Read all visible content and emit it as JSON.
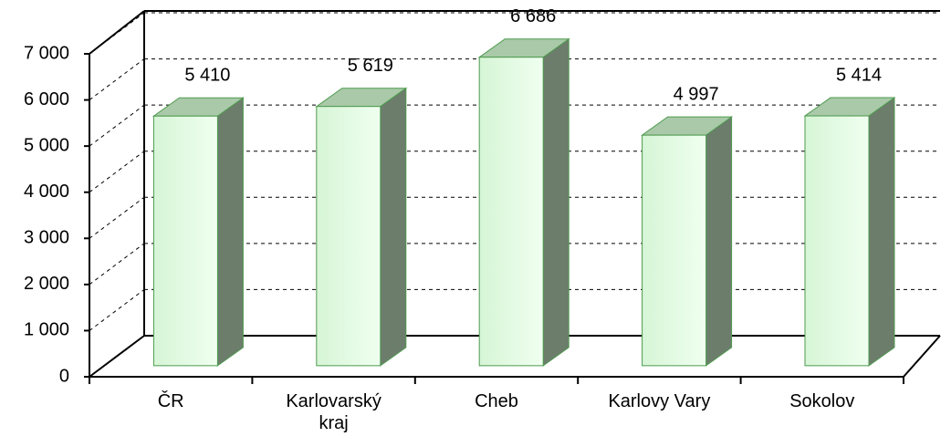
{
  "chart_data": {
    "type": "bar3d",
    "categories": [
      "ČR",
      "Karlovarský kraj",
      "Cheb",
      "Karlovy Vary",
      "Sokolov"
    ],
    "values": [
      5410,
      5619,
      6686,
      4997,
      5414
    ],
    "value_labels": [
      "5 410",
      "5 619",
      "6 686",
      "4 997",
      "5 414"
    ],
    "color": "#e4fbe4",
    "ylim": [
      0,
      7000
    ],
    "yticks": [
      0,
      {
        "value": 1000,
        "label": "1 000"
      },
      {
        "value": 2000,
        "label": "2 000"
      },
      {
        "value": 3000,
        "label": "3 000"
      },
      {
        "value": 4000,
        "label": "4 000"
      },
      {
        "value": 5000,
        "label": "5 000"
      },
      {
        "value": 6000,
        "label": "6 000"
      },
      {
        "value": 7000,
        "label": "7 000"
      }
    ],
    "grid": true
  }
}
